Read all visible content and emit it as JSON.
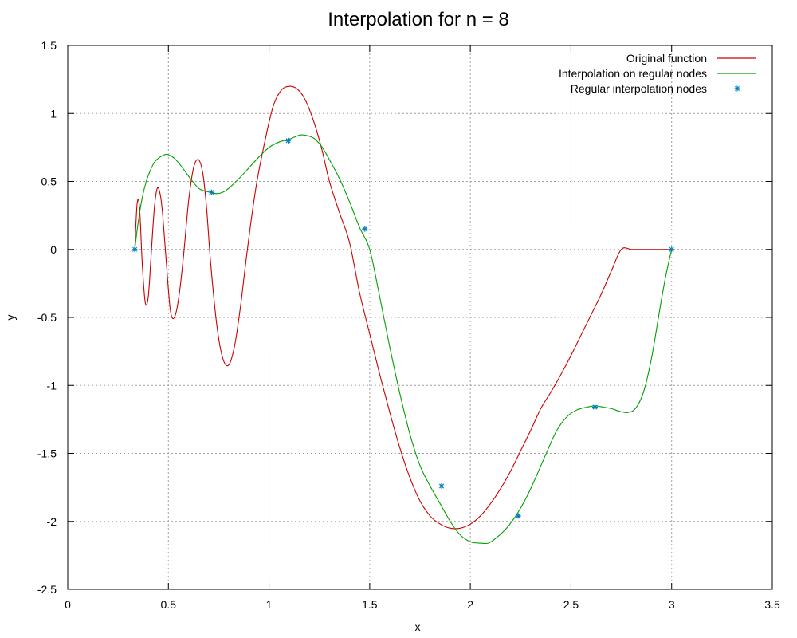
{
  "chart_data": {
    "type": "line",
    "title": "Interpolation for n = 8",
    "xlabel": "x",
    "ylabel": "y",
    "xlim": [
      0,
      3.5
    ],
    "ylim": [
      -2.5,
      1.5
    ],
    "xticks": [
      0,
      0.5,
      1,
      1.5,
      2,
      2.5,
      3,
      3.5
    ],
    "xtick_labels": [
      "0",
      "0.5",
      "1",
      "1.5",
      "2",
      "2.5",
      "3",
      "3.5"
    ],
    "yticks": [
      -2.5,
      -2,
      -1.5,
      -1,
      -0.5,
      0,
      0.5,
      1,
      1.5
    ],
    "ytick_labels": [
      "-2.5",
      "-2",
      "-1.5",
      "-1",
      "-0.5",
      "0",
      "0.5",
      "1",
      "1.5"
    ],
    "grid": true,
    "legend_position": "top-right",
    "series": [
      {
        "name": "Original function",
        "style": "line",
        "color": "#cc0000",
        "x": [
          0.333,
          0.345,
          0.357,
          0.37,
          0.385,
          0.4,
          0.414,
          0.43,
          0.445,
          0.46,
          0.472,
          0.49,
          0.51,
          0.53,
          0.552,
          0.575,
          0.6,
          0.625,
          0.65,
          0.672,
          0.69,
          0.71,
          0.74,
          0.77,
          0.8,
          0.83,
          0.86,
          0.88,
          0.91,
          0.94,
          0.98,
          1.02,
          1.06,
          1.1,
          1.14,
          1.18,
          1.22,
          1.26,
          1.3,
          1.35,
          1.4,
          1.45,
          1.5,
          1.55,
          1.6,
          1.65,
          1.7,
          1.75,
          1.8,
          1.85,
          1.9,
          1.95,
          2.0,
          2.05,
          2.1,
          2.15,
          2.2,
          2.25,
          2.3,
          2.35,
          2.4,
          2.45,
          2.5,
          2.55,
          2.6,
          2.65,
          2.7,
          2.75,
          2.8,
          2.85,
          2.9,
          2.95,
          3.0
        ],
        "y": [
          0.0,
          0.34,
          0.3,
          -0.1,
          -0.39,
          -0.35,
          -0.05,
          0.3,
          0.45,
          0.4,
          0.25,
          -0.1,
          -0.45,
          -0.5,
          -0.35,
          -0.05,
          0.35,
          0.6,
          0.66,
          0.55,
          0.3,
          -0.1,
          -0.55,
          -0.8,
          -0.85,
          -0.7,
          -0.4,
          -0.15,
          0.2,
          0.5,
          0.8,
          1.05,
          1.17,
          1.2,
          1.18,
          1.1,
          0.95,
          0.75,
          0.5,
          0.27,
          0.05,
          -0.32,
          -0.62,
          -0.92,
          -1.2,
          -1.46,
          -1.68,
          -1.85,
          -1.96,
          -2.02,
          -2.05,
          -2.05,
          -2.02,
          -1.96,
          -1.87,
          -1.76,
          -1.63,
          -1.48,
          -1.33,
          -1.17,
          -1.05,
          -0.92,
          -0.78,
          -0.63,
          -0.48,
          -0.33,
          -0.16,
          0.0,
          0.0,
          0.0,
          0.0,
          0.0,
          0.0
        ]
      },
      {
        "name": "Interpolation on regular nodes",
        "style": "line",
        "color": "#00a000",
        "x": [
          0.333,
          0.35,
          0.37,
          0.39,
          0.41,
          0.43,
          0.45,
          0.47,
          0.49,
          0.51,
          0.53,
          0.56,
          0.59,
          0.62,
          0.65,
          0.68,
          0.71,
          0.74,
          0.77,
          0.8,
          0.85,
          0.9,
          0.95,
          1.0,
          1.05,
          1.1,
          1.15,
          1.18,
          1.22,
          1.26,
          1.3,
          1.35,
          1.4,
          1.45,
          1.5,
          1.55,
          1.6,
          1.65,
          1.7,
          1.75,
          1.8,
          1.85,
          1.9,
          1.95,
          2.0,
          2.05,
          2.09,
          2.13,
          2.18,
          2.23,
          2.28,
          2.33,
          2.38,
          2.43,
          2.48,
          2.53,
          2.58,
          2.62,
          2.66,
          2.7,
          2.74,
          2.78,
          2.82,
          2.86,
          2.9,
          2.94,
          2.97,
          3.0
        ],
        "y": [
          0.0,
          0.2,
          0.38,
          0.5,
          0.58,
          0.64,
          0.67,
          0.69,
          0.7,
          0.69,
          0.67,
          0.62,
          0.56,
          0.5,
          0.45,
          0.43,
          0.42,
          0.41,
          0.42,
          0.45,
          0.52,
          0.6,
          0.68,
          0.75,
          0.79,
          0.81,
          0.84,
          0.84,
          0.82,
          0.76,
          0.66,
          0.52,
          0.35,
          0.16,
          0.0,
          -0.35,
          -0.72,
          -1.06,
          -1.36,
          -1.59,
          -1.74,
          -1.87,
          -2.0,
          -2.1,
          -2.15,
          -2.16,
          -2.16,
          -2.12,
          -2.05,
          -1.95,
          -1.82,
          -1.66,
          -1.49,
          -1.33,
          -1.23,
          -1.18,
          -1.16,
          -1.15,
          -1.16,
          -1.17,
          -1.19,
          -1.2,
          -1.17,
          -1.05,
          -0.8,
          -0.45,
          -0.2,
          0.0
        ]
      },
      {
        "name": "Regular interpolation nodes",
        "style": "points",
        "color": "#0080c0",
        "x": [
          0.333,
          0.714,
          1.095,
          1.476,
          1.857,
          2.238,
          2.619,
          3.0
        ],
        "y": [
          0.0,
          0.42,
          0.8,
          0.15,
          -1.74,
          -1.96,
          -1.16,
          0.0
        ]
      }
    ]
  }
}
